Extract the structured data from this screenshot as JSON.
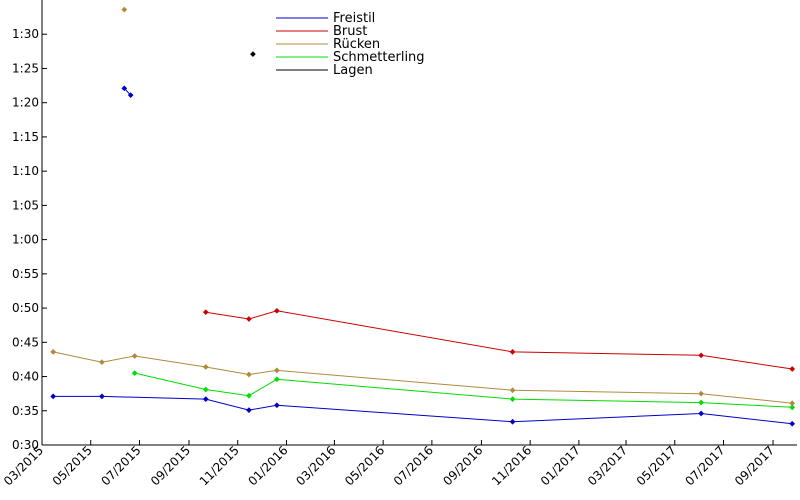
{
  "chart_data": {
    "type": "line",
    "title": "",
    "xlabel": "",
    "ylabel": "",
    "x_axis": {
      "type": "date",
      "range": [
        "2015-03-01",
        "2017-10-01"
      ],
      "tick_dates": [
        "2015-03-01",
        "2015-05-01",
        "2015-07-01",
        "2015-09-01",
        "2015-11-01",
        "2016-01-01",
        "2016-03-01",
        "2016-05-01",
        "2016-07-01",
        "2016-09-01",
        "2016-11-01",
        "2017-01-01",
        "2017-03-01",
        "2017-05-01",
        "2017-07-01",
        "2017-09-01"
      ],
      "tick_labels": [
        "03/2015",
        "05/2015",
        "07/2015",
        "09/2015",
        "11/2015",
        "01/2016",
        "03/2016",
        "05/2016",
        "07/2016",
        "09/2016",
        "11/2016",
        "01/2017",
        "03/2017",
        "05/2017",
        "07/2017",
        "09/2017"
      ]
    },
    "y_axis": {
      "unit": "seconds",
      "range": [
        30,
        95
      ],
      "tick_values": [
        30,
        35,
        40,
        45,
        50,
        55,
        60,
        65,
        70,
        75,
        80,
        85,
        90
      ],
      "tick_labels": [
        "0:30",
        "0:35",
        "0:40",
        "0:45",
        "0:50",
        "0:55",
        "1:00",
        "1:05",
        "1:10",
        "1:15",
        "1:20",
        "1:25",
        "1:30"
      ]
    },
    "grid": false,
    "legend": {
      "position": "top-center"
    },
    "series": [
      {
        "name": "Freistil",
        "color": "#0000cc",
        "points": [
          {
            "x": "2015-03-15",
            "y": 37.1
          },
          {
            "x": "2015-05-15",
            "y": 37.1
          },
          {
            "x": "2015-09-22",
            "y": 36.7
          },
          {
            "x": "2015-11-15",
            "y": 35.1
          },
          {
            "x": "2015-12-20",
            "y": 35.8
          },
          {
            "x": "2016-10-10",
            "y": 33.4
          },
          {
            "x": "2017-06-03",
            "y": 34.6
          },
          {
            "x": "2017-09-25",
            "y": 33.1
          }
        ],
        "extra_points": [
          {
            "x": "2015-06-12",
            "y": 82.1
          },
          {
            "x": "2015-06-20",
            "y": 81.1
          }
        ]
      },
      {
        "name": "Brust",
        "color": "#cc0000",
        "points": [
          {
            "x": "2015-09-22",
            "y": 49.4
          },
          {
            "x": "2015-11-15",
            "y": 48.4
          },
          {
            "x": "2015-12-20",
            "y": 49.6
          },
          {
            "x": "2016-10-10",
            "y": 43.6
          },
          {
            "x": "2017-06-03",
            "y": 43.1
          },
          {
            "x": "2017-09-25",
            "y": 41.1
          }
        ]
      },
      {
        "name": "Rücken",
        "color": "#b08a3c",
        "points": [
          {
            "x": "2015-03-15",
            "y": 43.6
          },
          {
            "x": "2015-05-15",
            "y": 42.1
          },
          {
            "x": "2015-06-25",
            "y": 43.0
          },
          {
            "x": "2015-09-22",
            "y": 41.4
          },
          {
            "x": "2015-11-15",
            "y": 40.3
          },
          {
            "x": "2015-12-20",
            "y": 40.9
          },
          {
            "x": "2016-10-10",
            "y": 38.0
          },
          {
            "x": "2017-06-03",
            "y": 37.5
          },
          {
            "x": "2017-09-25",
            "y": 36.1
          }
        ],
        "extra_points": [
          {
            "x": "2015-06-12",
            "y": 93.6
          }
        ]
      },
      {
        "name": "Schmetterling",
        "color": "#00dd00",
        "points": [
          {
            "x": "2015-06-25",
            "y": 40.5
          },
          {
            "x": "2015-09-22",
            "y": 38.1
          },
          {
            "x": "2015-11-15",
            "y": 37.2
          },
          {
            "x": "2015-12-20",
            "y": 39.6
          },
          {
            "x": "2016-10-10",
            "y": 36.7
          },
          {
            "x": "2017-06-03",
            "y": 36.2
          },
          {
            "x": "2017-09-25",
            "y": 35.5
          }
        ]
      },
      {
        "name": "Lagen",
        "color": "#000000",
        "points": [],
        "extra_points": [
          {
            "x": "2015-11-20",
            "y": 87.1
          }
        ]
      }
    ]
  }
}
